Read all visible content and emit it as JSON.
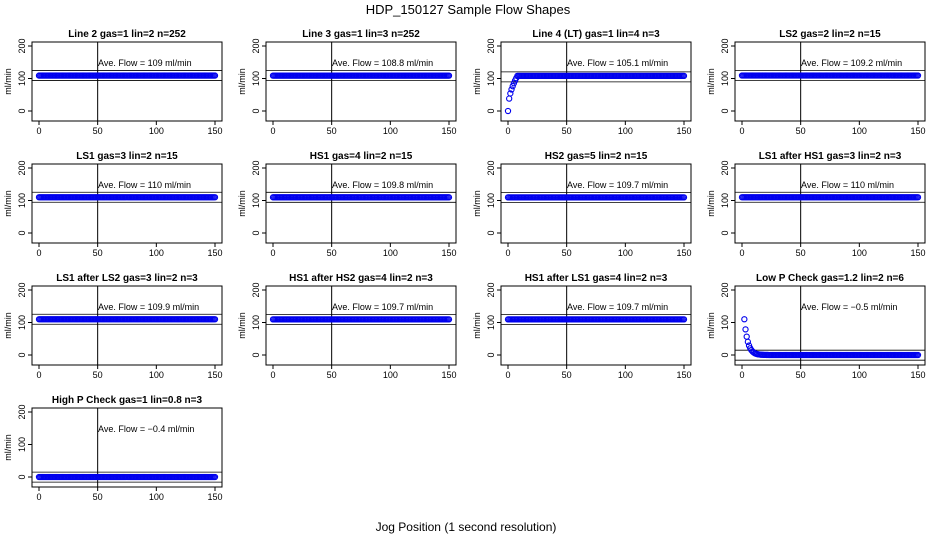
{
  "figure": {
    "title": "HDP_150127  Sample Flow Shapes",
    "xlabel": "Jog Position (1 second resolution)"
  },
  "colors": {
    "points": "#0000ee",
    "axes": "#000000",
    "background": "#ffffff"
  },
  "chart_data": [
    {
      "type": "scatter",
      "title": "Line 2 gas=1 lin=2 n=252",
      "ylabel": "ml/min",
      "xlim": [
        0,
        150
      ],
      "ylim": [
        0,
        200
      ],
      "x_ticks": [
        0,
        50,
        100,
        150
      ],
      "y_ticks": [
        0,
        100,
        200
      ],
      "vline_x": 50,
      "annotation": "Ave. Flow = 109  ml/min",
      "avg_flow": 109,
      "series": [
        {
          "shape": "flat",
          "x_range": [
            0,
            150
          ],
          "level": 109
        }
      ]
    },
    {
      "type": "scatter",
      "title": "Line 3 gas=1 lin=3 n=252",
      "ylabel": "ml/min",
      "xlim": [
        0,
        150
      ],
      "ylim": [
        0,
        200
      ],
      "x_ticks": [
        0,
        50,
        100,
        150
      ],
      "y_ticks": [
        0,
        100,
        200
      ],
      "vline_x": 50,
      "annotation": "Ave. Flow = 108.8  ml/min",
      "avg_flow": 108.8,
      "series": [
        {
          "shape": "flat",
          "x_range": [
            0,
            150
          ],
          "level": 108.8
        }
      ]
    },
    {
      "type": "scatter",
      "title": "Line 4 (LT) gas=1 lin=4 n=3",
      "ylabel": "ml/min",
      "xlim": [
        0,
        150
      ],
      "ylim": [
        0,
        200
      ],
      "x_ticks": [
        0,
        50,
        100,
        150
      ],
      "y_ticks": [
        0,
        100,
        200
      ],
      "vline_x": 50,
      "annotation": "Ave. Flow = 105.1  ml/min",
      "avg_flow": 105.1,
      "series": [
        {
          "shape": "rise",
          "x_range": [
            0,
            150
          ],
          "level": 108,
          "start_value": 0,
          "transition_x": 8
        }
      ]
    },
    {
      "type": "scatter",
      "title": "LS2 gas=2 lin=2 n=15",
      "ylabel": "ml/min",
      "xlim": [
        0,
        150
      ],
      "ylim": [
        0,
        200
      ],
      "x_ticks": [
        0,
        50,
        100,
        150
      ],
      "y_ticks": [
        0,
        100,
        200
      ],
      "vline_x": 50,
      "annotation": "Ave. Flow = 109.2  ml/min",
      "avg_flow": 109.2,
      "series": [
        {
          "shape": "flat",
          "x_range": [
            0,
            150
          ],
          "level": 109.2
        }
      ]
    },
    {
      "type": "scatter",
      "title": "LS1 gas=3 lin=2 n=15",
      "ylabel": "ml/min",
      "xlim": [
        0,
        150
      ],
      "ylim": [
        0,
        200
      ],
      "x_ticks": [
        0,
        50,
        100,
        150
      ],
      "y_ticks": [
        0,
        100,
        200
      ],
      "vline_x": 50,
      "annotation": "Ave. Flow = 110  ml/min",
      "avg_flow": 110,
      "series": [
        {
          "shape": "flat",
          "x_range": [
            0,
            150
          ],
          "level": 110
        }
      ]
    },
    {
      "type": "scatter",
      "title": "HS1 gas=4 lin=2 n=15",
      "ylabel": "ml/min",
      "xlim": [
        0,
        150
      ],
      "ylim": [
        0,
        200
      ],
      "x_ticks": [
        0,
        50,
        100,
        150
      ],
      "y_ticks": [
        0,
        100,
        200
      ],
      "vline_x": 50,
      "annotation": "Ave. Flow = 109.8  ml/min",
      "avg_flow": 109.8,
      "series": [
        {
          "shape": "flat",
          "x_range": [
            0,
            150
          ],
          "level": 109.8
        }
      ]
    },
    {
      "type": "scatter",
      "title": "HS2 gas=5 lin=2 n=15",
      "ylabel": "ml/min",
      "xlim": [
        0,
        150
      ],
      "ylim": [
        0,
        200
      ],
      "x_ticks": [
        0,
        50,
        100,
        150
      ],
      "y_ticks": [
        0,
        100,
        200
      ],
      "vline_x": 50,
      "annotation": "Ave. Flow = 109.7  ml/min",
      "avg_flow": 109.7,
      "series": [
        {
          "shape": "flat",
          "x_range": [
            0,
            150
          ],
          "level": 109.7
        }
      ]
    },
    {
      "type": "scatter",
      "title": "LS1 after HS1 gas=3 lin=2 n=3",
      "ylabel": "ml/min",
      "xlim": [
        0,
        150
      ],
      "ylim": [
        0,
        200
      ],
      "x_ticks": [
        0,
        50,
        100,
        150
      ],
      "y_ticks": [
        0,
        100,
        200
      ],
      "vline_x": 50,
      "annotation": "Ave. Flow = 110  ml/min",
      "avg_flow": 110,
      "series": [
        {
          "shape": "flat",
          "x_range": [
            0,
            150
          ],
          "level": 110
        }
      ]
    },
    {
      "type": "scatter",
      "title": "LS1 after LS2 gas=3 lin=2 n=3",
      "ylabel": "ml/min",
      "xlim": [
        0,
        150
      ],
      "ylim": [
        0,
        200
      ],
      "x_ticks": [
        0,
        50,
        100,
        150
      ],
      "y_ticks": [
        0,
        100,
        200
      ],
      "vline_x": 50,
      "annotation": "Ave. Flow = 109.9  ml/min",
      "avg_flow": 109.9,
      "series": [
        {
          "shape": "flat",
          "x_range": [
            0,
            150
          ],
          "level": 109.9
        }
      ]
    },
    {
      "type": "scatter",
      "title": "HS1 after HS2 gas=4 lin=2 n=3",
      "ylabel": "ml/min",
      "xlim": [
        0,
        150
      ],
      "ylim": [
        0,
        200
      ],
      "x_ticks": [
        0,
        50,
        100,
        150
      ],
      "y_ticks": [
        0,
        100,
        200
      ],
      "vline_x": 50,
      "annotation": "Ave. Flow = 109.7  ml/min",
      "avg_flow": 109.7,
      "series": [
        {
          "shape": "flat",
          "x_range": [
            0,
            150
          ],
          "level": 109.7
        }
      ]
    },
    {
      "type": "scatter",
      "title": "HS1 after LS1 gas=4 lin=2 n=3",
      "ylabel": "ml/min",
      "xlim": [
        0,
        150
      ],
      "ylim": [
        0,
        200
      ],
      "x_ticks": [
        0,
        50,
        100,
        150
      ],
      "y_ticks": [
        0,
        100,
        200
      ],
      "vline_x": 50,
      "annotation": "Ave. Flow = 109.7  ml/min",
      "avg_flow": 109.7,
      "series": [
        {
          "shape": "flat",
          "x_range": [
            0,
            150
          ],
          "level": 109.7
        }
      ]
    },
    {
      "type": "scatter",
      "title": "Low P Check gas=1.2 lin=2 n=6",
      "ylabel": "ml/min",
      "xlim": [
        0,
        150
      ],
      "ylim": [
        0,
        200
      ],
      "x_ticks": [
        0,
        50,
        100,
        150
      ],
      "y_ticks": [
        0,
        100,
        200
      ],
      "vline_x": 50,
      "annotation": "Ave. Flow = −0.5  ml/min",
      "avg_flow": -0.5,
      "series": [
        {
          "shape": "decay",
          "x_range": [
            2,
            150
          ],
          "level": 0,
          "start_value": 110,
          "transition_x": 12
        }
      ]
    },
    {
      "type": "scatter",
      "title": "High P Check gas=1 lin=0.8 n=3",
      "ylabel": "ml/min",
      "xlim": [
        0,
        150
      ],
      "ylim": [
        0,
        200
      ],
      "x_ticks": [
        0,
        50,
        100,
        150
      ],
      "y_ticks": [
        0,
        100,
        200
      ],
      "vline_x": 50,
      "annotation": "Ave. Flow = −0.4  ml/min",
      "avg_flow": -0.4,
      "series": [
        {
          "shape": "flat",
          "x_range": [
            0,
            150
          ],
          "level": 0
        }
      ]
    }
  ]
}
